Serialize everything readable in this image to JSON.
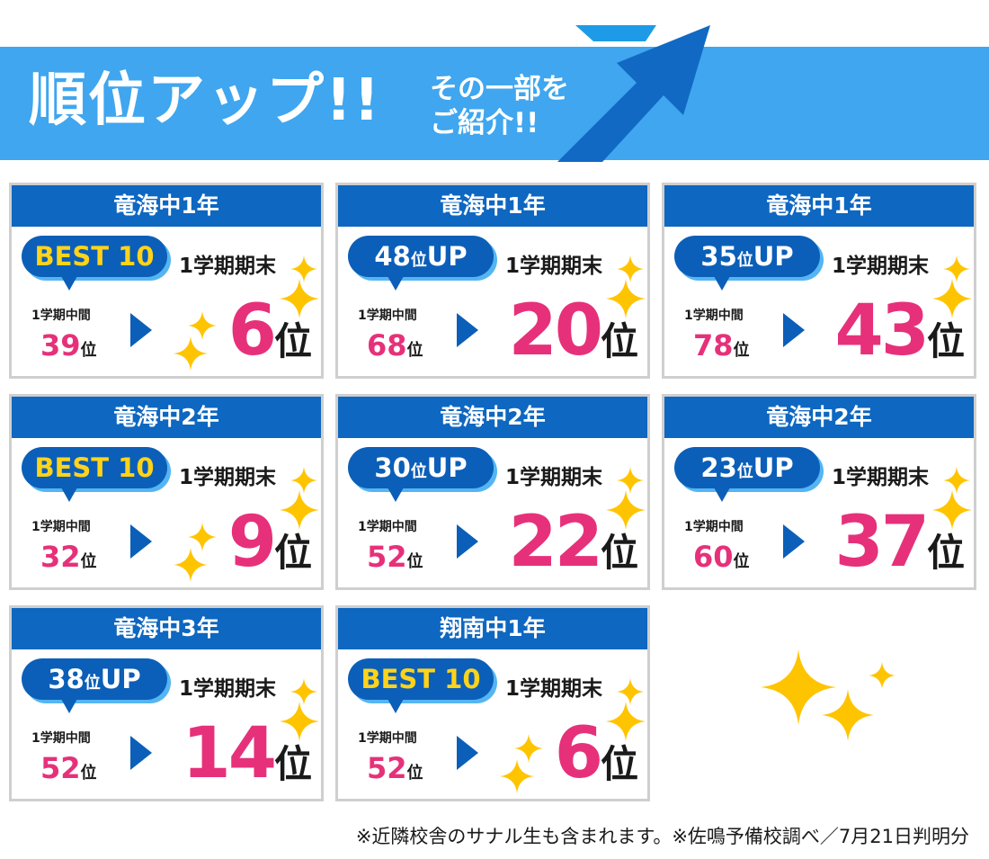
{
  "header": {
    "title": "順位アップ!!",
    "subtitle_line1": "その一部を",
    "subtitle_line2": "ご紹介!!"
  },
  "cards": [
    {
      "school": "竜海中1年",
      "badge_main": "BEST 10",
      "badge_small": "",
      "badge_suffix": "",
      "badge_best": true,
      "period_end": "1学期期末",
      "period_mid": "1学期中間",
      "mid_rank": "39",
      "rank_unit": "位",
      "final_rank": "6",
      "final_unit": "位"
    },
    {
      "school": "竜海中1年",
      "badge_main": "48",
      "badge_small": "位",
      "badge_suffix": "UP",
      "badge_best": false,
      "period_end": "1学期期末",
      "period_mid": "1学期中間",
      "mid_rank": "68",
      "rank_unit": "位",
      "final_rank": "20",
      "final_unit": "位"
    },
    {
      "school": "竜海中1年",
      "badge_main": "35",
      "badge_small": "位",
      "badge_suffix": "UP",
      "badge_best": false,
      "period_end": "1学期期末",
      "period_mid": "1学期中間",
      "mid_rank": "78",
      "rank_unit": "位",
      "final_rank": "43",
      "final_unit": "位"
    },
    {
      "school": "竜海中2年",
      "badge_main": "BEST 10",
      "badge_small": "",
      "badge_suffix": "",
      "badge_best": true,
      "period_end": "1学期期末",
      "period_mid": "1学期中間",
      "mid_rank": "32",
      "rank_unit": "位",
      "final_rank": "9",
      "final_unit": "位"
    },
    {
      "school": "竜海中2年",
      "badge_main": "30",
      "badge_small": "位",
      "badge_suffix": "UP",
      "badge_best": false,
      "period_end": "1学期期末",
      "period_mid": "1学期中間",
      "mid_rank": "52",
      "rank_unit": "位",
      "final_rank": "22",
      "final_unit": "位"
    },
    {
      "school": "竜海中2年",
      "badge_main": "23",
      "badge_small": "位",
      "badge_suffix": "UP",
      "badge_best": false,
      "period_end": "1学期期末",
      "period_mid": "1学期中間",
      "mid_rank": "60",
      "rank_unit": "位",
      "final_rank": "37",
      "final_unit": "位"
    },
    {
      "school": "竜海中3年",
      "badge_main": "38",
      "badge_small": "位",
      "badge_suffix": "UP",
      "badge_best": false,
      "period_end": "1学期期末",
      "period_mid": "1学期中間",
      "mid_rank": "52",
      "rank_unit": "位",
      "final_rank": "14",
      "final_unit": "位"
    },
    {
      "school": "翔南中1年",
      "badge_main": "BEST 10",
      "badge_small": "",
      "badge_suffix": "",
      "badge_best": true,
      "period_end": "1学期期末",
      "period_mid": "1学期中間",
      "mid_rank": "52",
      "rank_unit": "位",
      "final_rank": "6",
      "final_unit": "位"
    }
  ],
  "footnote": "※近隣校舎のサナル生も含まれます。※佐鳴予備校調べ／7月21日判明分",
  "colors": {
    "banner": "#3fa6ef",
    "card_header": "#0e67c0",
    "rank_pink": "#e6317a",
    "badge_best_text": "#ffd31a",
    "sparkle": "#ffc400"
  }
}
